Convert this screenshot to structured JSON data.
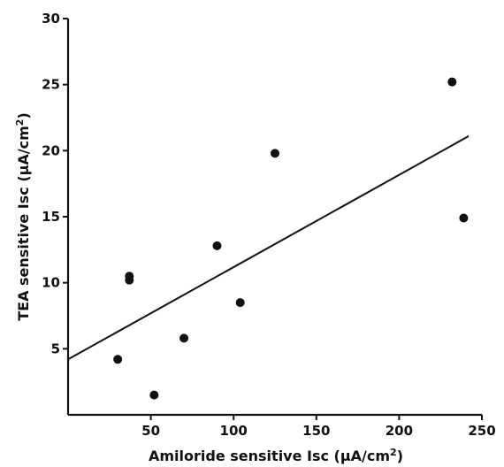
{
  "chart_data": {
    "type": "scatter",
    "title": "",
    "xlabel": "Amiloride sensitive Isc (μA/cm2)",
    "ylabel": "TEA sensitive Isc (μA/cm2)",
    "xlabel_parts": {
      "base": "Amiloride sensitive Isc (μA/cm",
      "sup": "2",
      "end": ")"
    },
    "ylabel_parts": {
      "base": "TEA sensitive Isc (μA/cm",
      "sup": "2",
      "end": ")"
    },
    "xlim": [
      0,
      250
    ],
    "ylim": [
      0,
      30
    ],
    "x_ticks": [
      50,
      100,
      150,
      200,
      250
    ],
    "y_ticks": [
      5,
      10,
      15,
      20,
      25,
      30
    ],
    "grid": false,
    "points": [
      {
        "x": 30,
        "y": 4.2
      },
      {
        "x": 37,
        "y": 10.5
      },
      {
        "x": 37,
        "y": 10.2
      },
      {
        "x": 52,
        "y": 1.5
      },
      {
        "x": 70,
        "y": 5.8
      },
      {
        "x": 90,
        "y": 12.8
      },
      {
        "x": 104,
        "y": 8.5
      },
      {
        "x": 125,
        "y": 19.8
      },
      {
        "x": 232,
        "y": 25.2
      },
      {
        "x": 239,
        "y": 14.9
      }
    ],
    "fit_line": {
      "x": [
        0,
        242
      ],
      "y": [
        4.2,
        21.1
      ]
    }
  }
}
